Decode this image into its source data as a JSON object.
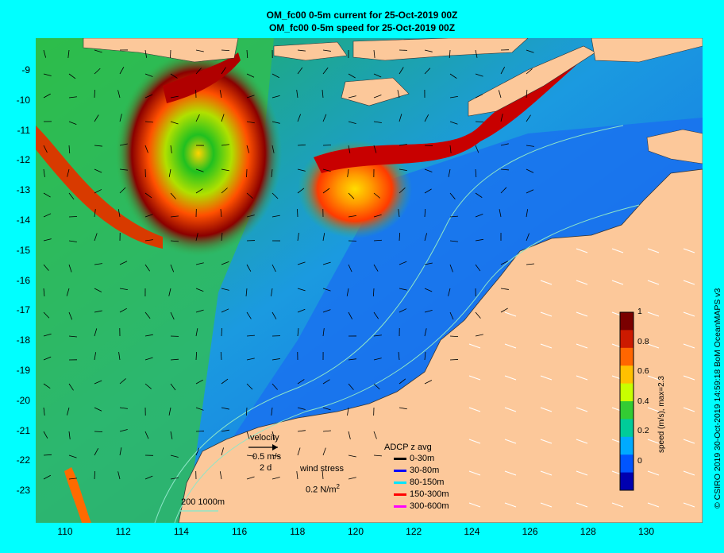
{
  "header": {
    "title_line1": "OM_fc00 0-5m current for 25-Oct-2019 00Z",
    "title_line2": "OM_fc00 0-5m speed for 25-Oct-2019 00Z"
  },
  "axes": {
    "lat_labels": [
      "-9",
      "-10",
      "-11",
      "-12",
      "-13",
      "-14",
      "-15",
      "-16",
      "-17",
      "-18",
      "-19",
      "-20",
      "-21",
      "-22",
      "-23"
    ],
    "lon_labels": [
      "110",
      "112",
      "114",
      "116",
      "118",
      "120",
      "122",
      "124",
      "126",
      "128",
      "130"
    ]
  },
  "legend": {
    "velocity_title": "velocity",
    "velocity_scale": "0.5 m/s",
    "velocity_days": "2 d",
    "wind_title": "wind stress",
    "wind_scale": "0.2 N/m",
    "wind_exp": "2",
    "adcp_title": "ADCP z avg",
    "adcp_items": [
      {
        "label": "0-30m",
        "color": "#000000"
      },
      {
        "label": "30-80m",
        "color": "#0000ff"
      },
      {
        "label": "80-150m",
        "color": "#00e5ff"
      },
      {
        "label": "150-300m",
        "color": "#ff0000"
      },
      {
        "label": "300-600m",
        "color": "#ff00ff"
      }
    ],
    "isobath_label": "200  1000m"
  },
  "colorbar": {
    "title": "speed (m/s), max=2.3",
    "ticks": [
      "1",
      "0.8",
      "0.6",
      "0.4",
      "0.2",
      "0"
    ],
    "colors": [
      "#7a0000",
      "#cc1a00",
      "#ff6600",
      "#ffc000",
      "#c8ff00",
      "#33cc33",
      "#00cc99",
      "#00aaff",
      "#0055ff",
      "#0000b0"
    ]
  },
  "credit": "© CSIRO 2019   30-Oct-2019 14:59:18 BoM OceanMAPS v3",
  "colors": {
    "land": "#fcc89a",
    "background": "#00ffff"
  }
}
